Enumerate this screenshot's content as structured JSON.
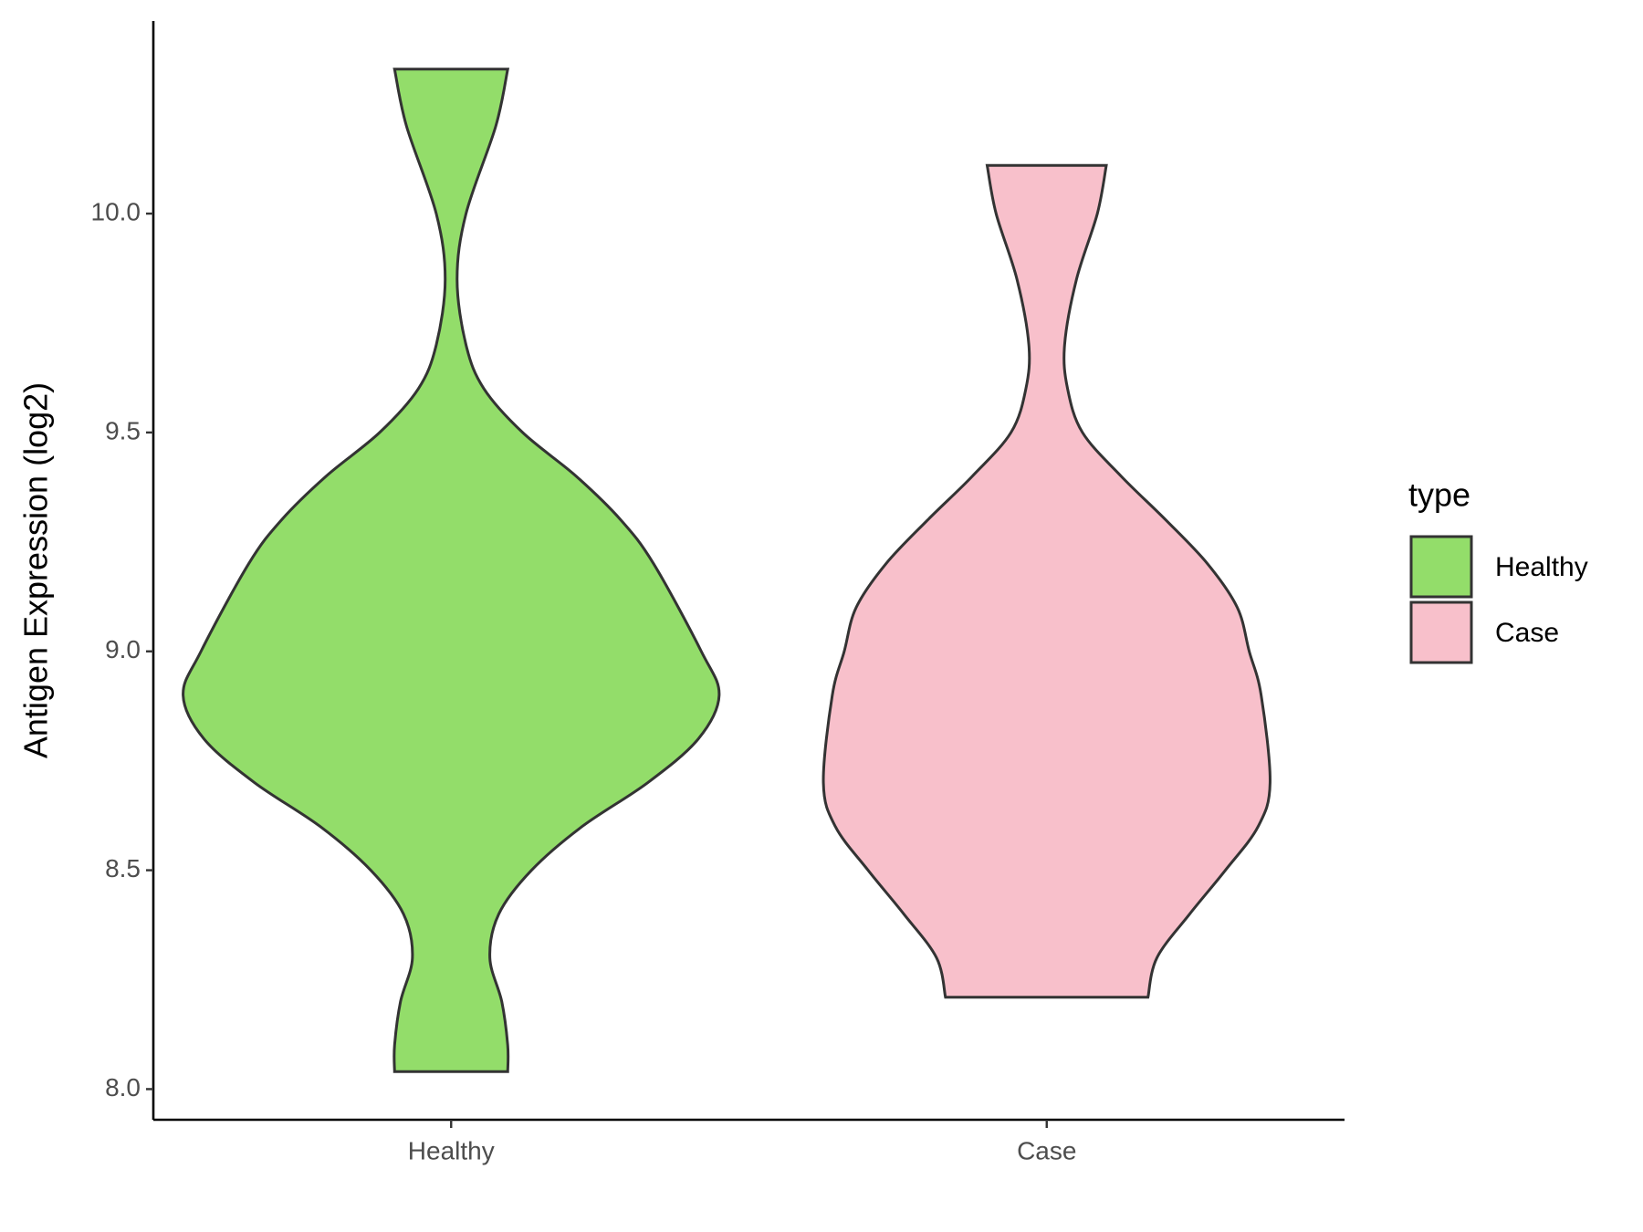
{
  "chart_data": {
    "type": "violin",
    "y_label": "Antigen Expression (log2)",
    "categories": [
      "Healthy",
      "Case"
    ],
    "legend_title": "type",
    "series": [
      {
        "name": "Healthy",
        "color": "#93dd6a",
        "y": [
          10.33,
          10.2,
          10.0,
          9.85,
          9.7,
          9.6,
          9.5,
          9.4,
          9.3,
          9.2,
          9.0,
          8.9,
          8.8,
          8.7,
          8.6,
          8.5,
          8.4,
          8.3,
          8.2,
          8.1,
          8.04
        ],
        "widths": [
          0.19,
          0.15,
          0.05,
          0.02,
          0.05,
          0.11,
          0.24,
          0.42,
          0.57,
          0.68,
          0.84,
          0.9,
          0.83,
          0.66,
          0.44,
          0.27,
          0.16,
          0.13,
          0.17,
          0.19,
          0.19
        ]
      },
      {
        "name": "Case",
        "color": "#f8c0cb",
        "y": [
          10.11,
          10.0,
          9.85,
          9.7,
          9.6,
          9.5,
          9.4,
          9.3,
          9.2,
          9.1,
          9.0,
          8.9,
          8.7,
          8.6,
          8.5,
          8.4,
          8.3,
          8.21
        ],
        "widths": [
          0.2,
          0.17,
          0.1,
          0.06,
          0.07,
          0.12,
          0.25,
          0.4,
          0.54,
          0.64,
          0.68,
          0.72,
          0.75,
          0.71,
          0.6,
          0.48,
          0.37,
          0.34
        ]
      }
    ],
    "ylim": [
      7.93,
      10.44
    ],
    "yticks": [
      {
        "value": 8,
        "label": "8.0"
      },
      8.5,
      {
        "value": 9,
        "label": "9.0"
      },
      9.5,
      {
        "value": 10,
        "label": "10.0"
      }
    ],
    "grid": false
  }
}
